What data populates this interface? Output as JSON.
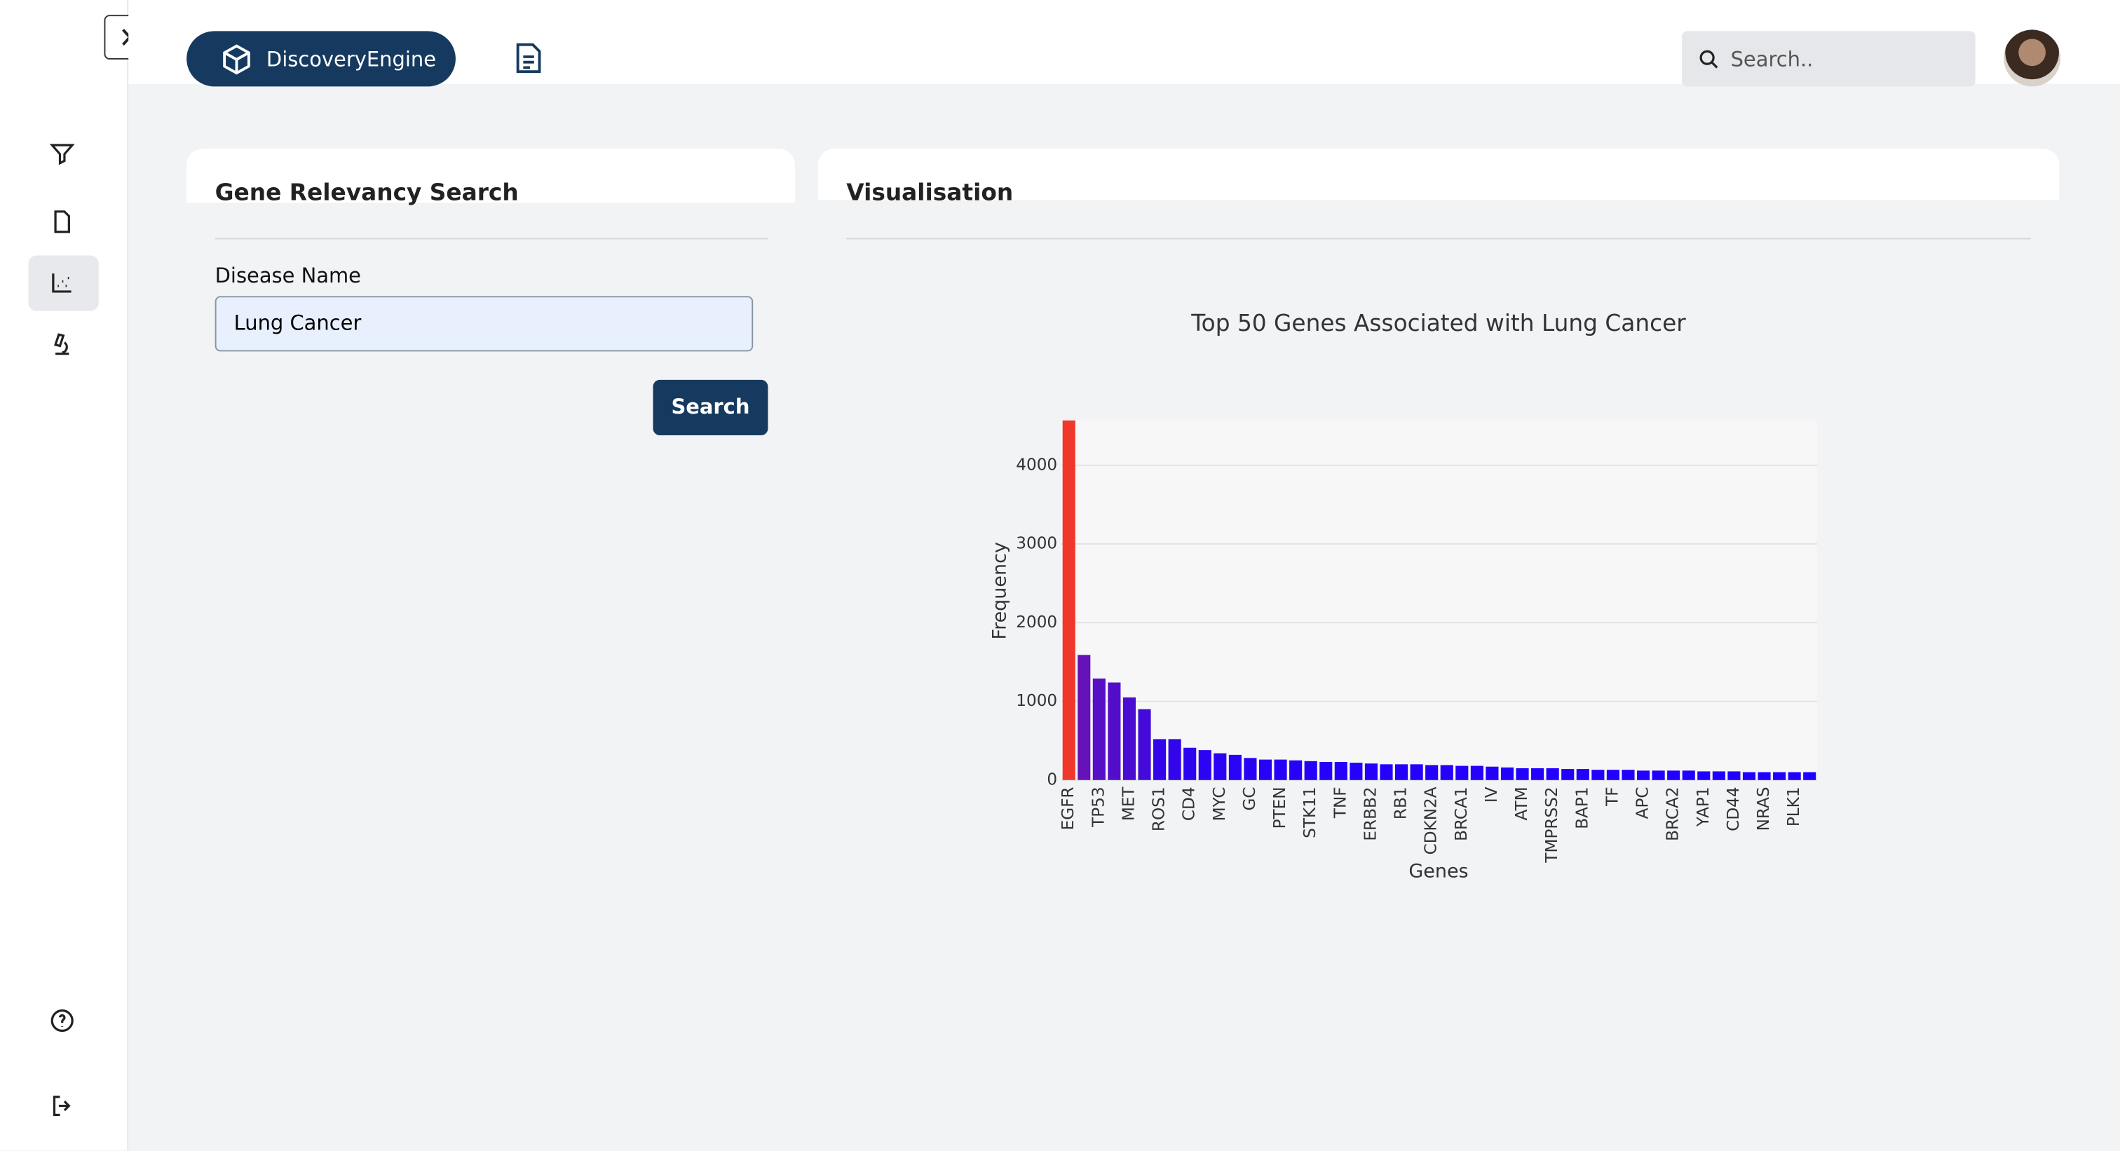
{
  "header": {
    "brand": "DiscoveryEngine",
    "search_placeholder": "Search.."
  },
  "search_panel": {
    "title": "Gene Relevancy Search",
    "field_label": "Disease Name",
    "field_value": "Lung Cancer",
    "button": "Search"
  },
  "visual_panel": {
    "title": "Visualisation"
  },
  "chart_data": {
    "type": "bar",
    "title": "Top 50 Genes Associated with Lung Cancer",
    "x_label": "Genes",
    "y_label": "Frequency",
    "categories": [
      "EGFR",
      null,
      "TP53",
      null,
      "MET",
      null,
      "ROS1",
      null,
      "CD4",
      null,
      "MYC",
      null,
      "GC",
      null,
      "PTEN",
      null,
      "STK11",
      null,
      "TNF",
      null,
      "ERBB2",
      null,
      "RB1",
      null,
      "CDKN2A",
      null,
      "BRCA1",
      null,
      "IV",
      null,
      "ATM",
      null,
      "TMPRSS2",
      null,
      "BAP1",
      null,
      "TF",
      null,
      "APC",
      null,
      "BRCA2",
      null,
      "YAP1",
      null,
      "CD44",
      null,
      "NRAS",
      null,
      "PLK1",
      null
    ],
    "values": [
      4570,
      1590,
      1290,
      1240,
      1050,
      900,
      520,
      520,
      410,
      380,
      340,
      320,
      280,
      260,
      260,
      250,
      240,
      230,
      230,
      220,
      210,
      200,
      200,
      200,
      190,
      190,
      180,
      180,
      170,
      160,
      150,
      150,
      150,
      140,
      140,
      130,
      130,
      130,
      120,
      120,
      120,
      120,
      110,
      110,
      110,
      100,
      100,
      100,
      100,
      100
    ],
    "color_scale": [
      "#1f00ff",
      "#f0372a"
    ],
    "ylim": [
      0,
      4570
    ],
    "yticks": [
      0,
      1000,
      2000,
      3000,
      4000
    ],
    "grid": true
  }
}
